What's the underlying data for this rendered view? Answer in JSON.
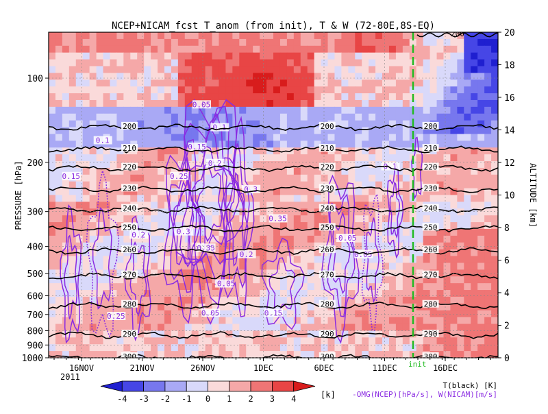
{
  "chart_data": {
    "type": "heatmap",
    "title": "NCEP+NICAM_fcst T_anom (from init), T & W  (72-80E,8S-EQ)",
    "ylabel_left": "PRESSURE [hPa]",
    "ylabel_right": "ALTITUDE [km]",
    "year_label": "2011",
    "init_label": "init",
    "pressure_ticks": [
      "100",
      "200",
      "300",
      "400",
      "500",
      "600",
      "700",
      "800",
      "900",
      "1000"
    ],
    "altitude_ticks": [
      "0",
      "2",
      "4",
      "6",
      "8",
      "10",
      "12",
      "14",
      "16",
      "18",
      "20"
    ],
    "date_ticks": [
      "16NOV",
      "21NOV",
      "26NOV",
      "1DEC",
      "6DEC",
      "11DEC",
      "16DEC"
    ],
    "colorbar": {
      "ticks": [
        "-4",
        "-3",
        "-2",
        "-1",
        "0",
        "1",
        "2",
        "3",
        "4"
      ],
      "unit": "[k]",
      "colors": [
        "#1f1fd0",
        "#4646e6",
        "#7777ee",
        "#a9a9f5",
        "#d9d9fa",
        "#fadada",
        "#f5a8a8",
        "#ef7575",
        "#e84545",
        "#d81c1c"
      ]
    },
    "legend_lines": [
      "T(black) [K]",
      "-OMG(NCEP)[hPa/s], W(NICAM)[m/s]"
    ],
    "temperature_contours": [
      {
        "label": "200",
        "pressure": 150
      },
      {
        "label": "210",
        "pressure": 180
      },
      {
        "label": "220",
        "pressure": 210
      },
      {
        "label": "230",
        "pressure": 250
      },
      {
        "label": "240",
        "pressure": 295
      },
      {
        "label": "250",
        "pressure": 345
      },
      {
        "label": "260",
        "pressure": 415
      },
      {
        "label": "270",
        "pressure": 510
      },
      {
        "label": "280",
        "pressure": 650
      },
      {
        "label": "290",
        "pressure": 830
      },
      {
        "label": "300",
        "pressure": 1000
      }
    ],
    "upper_contour": {
      "label": "200",
      "pressure": 70
    },
    "w_labels": [
      "0.05",
      "0.1",
      "0.15",
      "0.2",
      "0.25",
      "0.3",
      "0.35",
      "-0.05"
    ],
    "colors": {
      "temperature_line": "#000000",
      "w_contour": "#8a2be2",
      "init_line": "#22bb22"
    }
  }
}
